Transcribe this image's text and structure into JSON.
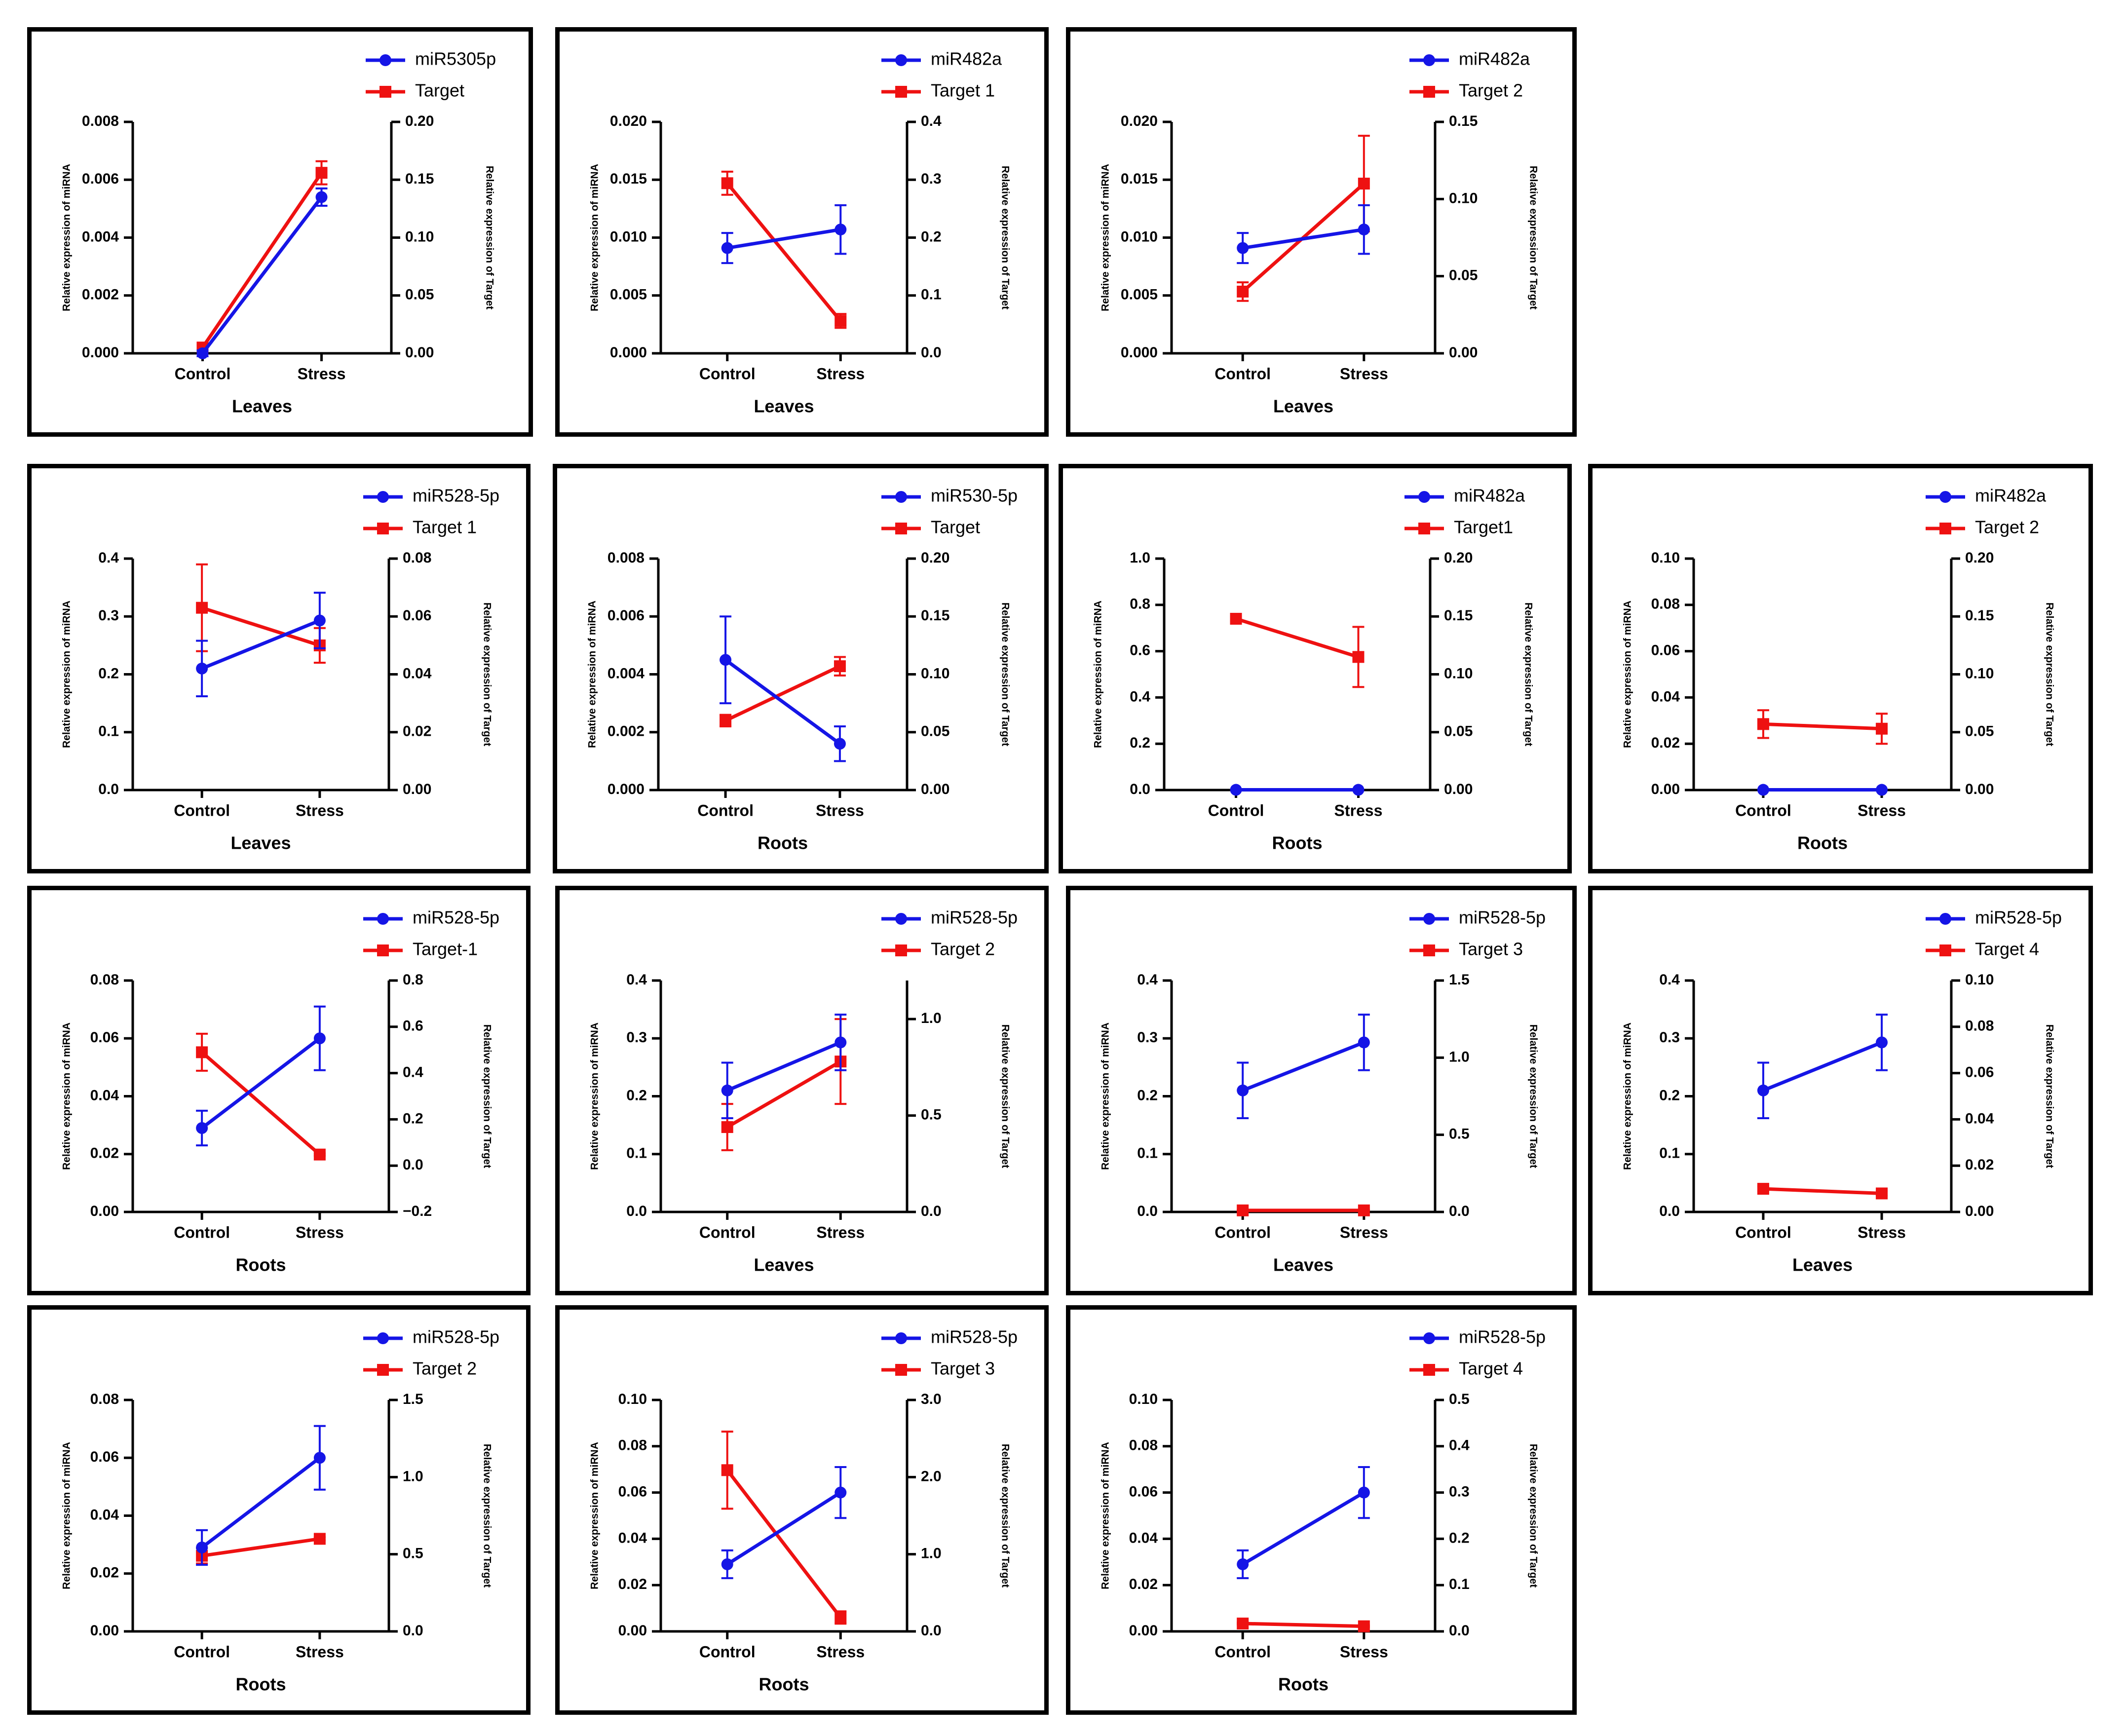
{
  "figure": {
    "colors": {
      "mirna": "#1515e6",
      "target": "#ee1111",
      "axis": "#000000"
    },
    "icons": {
      "mirna_marker": "circle-marker",
      "target_marker": "square-marker"
    }
  },
  "chart_data": [
    {
      "type": "line",
      "categories": [
        "Control",
        "Stress"
      ],
      "xlabel": "Leaves",
      "ylabel_left": "Relative expression of miRNA",
      "ylabel_right": "Relative expression of Target",
      "left_axis": {
        "min": 0,
        "max": 0.008,
        "ticks": [
          "0.000",
          "0.002",
          "0.004",
          "0.006",
          "0.008"
        ]
      },
      "right_axis": {
        "min": 0,
        "max": 0.2,
        "ticks": [
          "0.00",
          "0.05",
          "0.10",
          "0.15",
          "0.20"
        ]
      },
      "series": [
        {
          "name": "miR5305p",
          "axis": "left",
          "values": [
            0.0,
            0.0054
          ],
          "errors": [
            0.0001,
            0.0003
          ]
        },
        {
          "name": "Target",
          "axis": "right",
          "values": [
            0.005,
            0.156
          ],
          "errors": [
            0.002,
            0.01
          ]
        }
      ]
    },
    {
      "type": "line",
      "categories": [
        "Control",
        "Stress"
      ],
      "xlabel": "Leaves",
      "ylabel_left": "Relative expression of miRNA",
      "ylabel_right": "Relative expression of Target",
      "left_axis": {
        "min": 0,
        "max": 0.02,
        "ticks": [
          "0.000",
          "0.005",
          "0.010",
          "0.015",
          "0.020"
        ]
      },
      "right_axis": {
        "min": 0,
        "max": 0.4,
        "ticks": [
          "0.0",
          "0.1",
          "0.2",
          "0.3",
          "0.4"
        ]
      },
      "series": [
        {
          "name": "miR482a",
          "axis": "left",
          "values": [
            0.0091,
            0.0107
          ],
          "errors": [
            0.0013,
            0.0021
          ]
        },
        {
          "name": "Target 1",
          "axis": "right",
          "values": [
            0.294,
            0.056
          ],
          "errors": [
            0.02,
            0.012
          ]
        }
      ]
    },
    {
      "type": "line",
      "categories": [
        "Control",
        "Stress"
      ],
      "xlabel": "Leaves",
      "ylabel_left": "Relative expression of miRNA",
      "ylabel_right": "Relative expression of Target",
      "left_axis": {
        "min": 0,
        "max": 0.02,
        "ticks": [
          "0.000",
          "0.005",
          "0.010",
          "0.015",
          "0.020"
        ]
      },
      "right_axis": {
        "min": 0,
        "max": 0.15,
        "ticks": [
          "0.00",
          "0.05",
          "0.10",
          "0.15"
        ]
      },
      "series": [
        {
          "name": "miR482a",
          "axis": "left",
          "values": [
            0.0091,
            0.0107
          ],
          "errors": [
            0.0013,
            0.0021
          ]
        },
        {
          "name": "Target 2",
          "axis": "right",
          "values": [
            0.04,
            0.11
          ],
          "errors": [
            0.006,
            0.031
          ]
        }
      ]
    },
    {
      "type": "line",
      "categories": [
        "Control",
        "Stress"
      ],
      "xlabel": "Leaves",
      "ylabel_left": "Relative expression of miRNA",
      "ylabel_right": "Relative expression of Target",
      "left_axis": {
        "min": 0,
        "max": 0.4,
        "ticks": [
          "0.0",
          "0.1",
          "0.2",
          "0.3",
          "0.4"
        ]
      },
      "right_axis": {
        "min": 0,
        "max": 0.08,
        "ticks": [
          "0.00",
          "0.02",
          "0.04",
          "0.06",
          "0.08"
        ]
      },
      "series": [
        {
          "name": "miR528-5p",
          "axis": "left",
          "values": [
            0.21,
            0.293
          ],
          "errors": [
            0.048,
            0.048
          ]
        },
        {
          "name": "Target 1",
          "axis": "right",
          "values": [
            0.063,
            0.05
          ],
          "errors": [
            0.015,
            0.006
          ]
        }
      ]
    },
    {
      "type": "line",
      "categories": [
        "Control",
        "Stress"
      ],
      "xlabel": "Roots",
      "ylabel_left": "Relative expression of miRNA",
      "ylabel_right": "Relative expression of Target",
      "left_axis": {
        "min": 0,
        "max": 0.008,
        "ticks": [
          "0.000",
          "0.002",
          "0.004",
          "0.006",
          "0.008"
        ]
      },
      "right_axis": {
        "min": 0,
        "max": 0.2,
        "ticks": [
          "0.00",
          "0.05",
          "0.10",
          "0.15",
          "0.20"
        ]
      },
      "series": [
        {
          "name": "miR530-5p",
          "axis": "left",
          "values": [
            0.0045,
            0.0016
          ],
          "errors": [
            0.0015,
            0.0006
          ]
        },
        {
          "name": "Target",
          "axis": "right",
          "values": [
            0.06,
            0.107
          ],
          "errors": [
            0.005,
            0.008
          ]
        }
      ]
    },
    {
      "type": "line",
      "categories": [
        "Control",
        "Stress"
      ],
      "xlabel": "Roots",
      "ylabel_left": "Relative expression of miRNA",
      "ylabel_right": "Relative expression of Target",
      "left_axis": {
        "min": 0,
        "max": 1.0,
        "ticks": [
          "0.0",
          "0.2",
          "0.4",
          "0.6",
          "0.8",
          "1.0"
        ]
      },
      "right_axis": {
        "min": 0,
        "max": 0.2,
        "ticks": [
          "0.00",
          "0.05",
          "0.10",
          "0.15",
          "0.20"
        ]
      },
      "series": [
        {
          "name": "miR482a",
          "axis": "left",
          "values": [
            0.001,
            0.001
          ],
          "errors": [
            0,
            0
          ]
        },
        {
          "name": "Target1",
          "axis": "right",
          "values": [
            0.148,
            0.115
          ],
          "errors": [
            0.002,
            0.026
          ]
        }
      ]
    },
    {
      "type": "line",
      "categories": [
        "Control",
        "Stress"
      ],
      "xlabel": "Roots",
      "ylabel_left": "Relative expression of miRNA",
      "ylabel_right": "Relative expression of Target",
      "left_axis": {
        "min": 0,
        "max": 0.1,
        "ticks": [
          "0.00",
          "0.02",
          "0.04",
          "0.06",
          "0.08",
          "0.10"
        ]
      },
      "right_axis": {
        "min": 0,
        "max": 0.2,
        "ticks": [
          "0.00",
          "0.05",
          "0.10",
          "0.15",
          "0.20"
        ]
      },
      "series": [
        {
          "name": "miR482a",
          "axis": "left",
          "values": [
            0.0001,
            0.0001
          ],
          "errors": [
            0,
            0
          ]
        },
        {
          "name": "Target 2",
          "axis": "right",
          "values": [
            0.057,
            0.053
          ],
          "errors": [
            0.012,
            0.013
          ]
        }
      ]
    },
    {
      "type": "line",
      "categories": [
        "Control",
        "Stress"
      ],
      "xlabel": "Roots",
      "ylabel_left": "Relative expression of miRNA",
      "ylabel_right": "Relative expression of Target",
      "left_axis": {
        "min": 0,
        "max": 0.08,
        "ticks": [
          "0.00",
          "0.02",
          "0.04",
          "0.06",
          "0.08"
        ]
      },
      "right_axis": {
        "min": -0.2,
        "max": 0.8,
        "ticks": [
          "−0.2",
          "0.0",
          "0.2",
          "0.4",
          "0.6",
          "0.8"
        ]
      },
      "series": [
        {
          "name": "miR528-5p",
          "axis": "left",
          "values": [
            0.029,
            0.06
          ],
          "errors": [
            0.006,
            0.011
          ]
        },
        {
          "name": "Target-1",
          "axis": "right",
          "values": [
            0.49,
            0.048
          ],
          "errors": [
            0.08,
            0.005
          ]
        }
      ]
    },
    {
      "type": "line",
      "categories": [
        "Control",
        "Stress"
      ],
      "xlabel": "Leaves",
      "ylabel_left": "Relative expression of miRNA",
      "ylabel_right": "Relative expression of Target",
      "left_axis": {
        "min": 0,
        "max": 0.4,
        "ticks": [
          "0.0",
          "0.1",
          "0.2",
          "0.3",
          "0.4"
        ]
      },
      "right_axis": {
        "min": 0,
        "max": 1.2,
        "ticks": [
          "0.0",
          "0.5",
          "1.0"
        ]
      },
      "series": [
        {
          "name": "miR528-5p",
          "axis": "left",
          "values": [
            0.21,
            0.293
          ],
          "errors": [
            0.048,
            0.048
          ]
        },
        {
          "name": "Target 2",
          "axis": "right",
          "values": [
            0.44,
            0.78
          ],
          "errors": [
            0.12,
            0.22
          ]
        }
      ]
    },
    {
      "type": "line",
      "categories": [
        "Control",
        "Stress"
      ],
      "xlabel": "Leaves",
      "ylabel_left": "Relative expression of miRNA",
      "ylabel_right": "Relative expression of Target",
      "left_axis": {
        "min": 0,
        "max": 0.4,
        "ticks": [
          "0.0",
          "0.1",
          "0.2",
          "0.3",
          "0.4"
        ]
      },
      "right_axis": {
        "min": 0,
        "max": 1.5,
        "ticks": [
          "0.0",
          "0.5",
          "1.0",
          "1.5"
        ]
      },
      "series": [
        {
          "name": "miR528-5p",
          "axis": "left",
          "values": [
            0.21,
            0.293
          ],
          "errors": [
            0.048,
            0.048
          ]
        },
        {
          "name": "Target 3",
          "axis": "right",
          "values": [
            0.01,
            0.01
          ],
          "errors": [
            0.002,
            0.002
          ]
        }
      ]
    },
    {
      "type": "line",
      "categories": [
        "Control",
        "Stress"
      ],
      "xlabel": "Leaves",
      "ylabel_left": "Relative expression of miRNA",
      "ylabel_right": "Relative expression of Target",
      "left_axis": {
        "min": 0,
        "max": 0.4,
        "ticks": [
          "0.0",
          "0.1",
          "0.2",
          "0.3",
          "0.4"
        ]
      },
      "right_axis": {
        "min": 0,
        "max": 0.1,
        "ticks": [
          "0.00",
          "0.02",
          "0.04",
          "0.06",
          "0.08",
          "0.10"
        ]
      },
      "series": [
        {
          "name": "miR528-5p",
          "axis": "left",
          "values": [
            0.21,
            0.293
          ],
          "errors": [
            0.048,
            0.048
          ]
        },
        {
          "name": "Target 4",
          "axis": "right",
          "values": [
            0.01,
            0.008
          ],
          "errors": [
            0.001,
            0.001
          ]
        }
      ]
    },
    {
      "type": "line",
      "categories": [
        "Control",
        "Stress"
      ],
      "xlabel": "Roots",
      "ylabel_left": "Relative expression of miRNA",
      "ylabel_right": "Relative expression of Target",
      "left_axis": {
        "min": 0,
        "max": 0.08,
        "ticks": [
          "0.00",
          "0.02",
          "0.04",
          "0.06",
          "0.08"
        ]
      },
      "right_axis": {
        "min": 0,
        "max": 1.5,
        "ticks": [
          "0.0",
          "0.5",
          "1.0",
          "1.5"
        ]
      },
      "series": [
        {
          "name": "miR528-5p",
          "axis": "left",
          "values": [
            0.029,
            0.06
          ],
          "errors": [
            0.006,
            0.011
          ]
        },
        {
          "name": "Target 2",
          "axis": "right",
          "values": [
            0.49,
            0.6
          ],
          "errors": [
            0.05,
            0.01
          ]
        }
      ]
    },
    {
      "type": "line",
      "categories": [
        "Control",
        "Stress"
      ],
      "xlabel": "Roots",
      "ylabel_left": "Relative expression of miRNA",
      "ylabel_right": "Relative expression of Target",
      "left_axis": {
        "min": 0,
        "max": 0.1,
        "ticks": [
          "0.00",
          "0.02",
          "0.04",
          "0.06",
          "0.08",
          "0.10"
        ]
      },
      "right_axis": {
        "min": 0,
        "max": 3.0,
        "ticks": [
          "0.0",
          "1.0",
          "2.0",
          "3.0"
        ]
      },
      "series": [
        {
          "name": "miR528-5p",
          "axis": "left",
          "values": [
            0.029,
            0.06
          ],
          "errors": [
            0.006,
            0.011
          ]
        },
        {
          "name": "Target 3",
          "axis": "right",
          "values": [
            2.09,
            0.18
          ],
          "errors": [
            0.5,
            0.08
          ]
        }
      ]
    },
    {
      "type": "line",
      "categories": [
        "Control",
        "Stress"
      ],
      "xlabel": "Roots",
      "ylabel_left": "Relative expression of miRNA",
      "ylabel_right": "Relative expression of Target",
      "left_axis": {
        "min": 0,
        "max": 0.1,
        "ticks": [
          "0.00",
          "0.02",
          "0.04",
          "0.06",
          "0.08",
          "0.10"
        ]
      },
      "right_axis": {
        "min": 0,
        "max": 0.5,
        "ticks": [
          "0.0",
          "0.1",
          "0.2",
          "0.3",
          "0.4",
          "0.5"
        ]
      },
      "series": [
        {
          "name": "miR528-5p",
          "axis": "left",
          "values": [
            0.029,
            0.06
          ],
          "errors": [
            0.006,
            0.011
          ]
        },
        {
          "name": "Target 4",
          "axis": "right",
          "values": [
            0.017,
            0.011
          ],
          "errors": [
            0.002,
            0.002
          ]
        }
      ]
    }
  ]
}
